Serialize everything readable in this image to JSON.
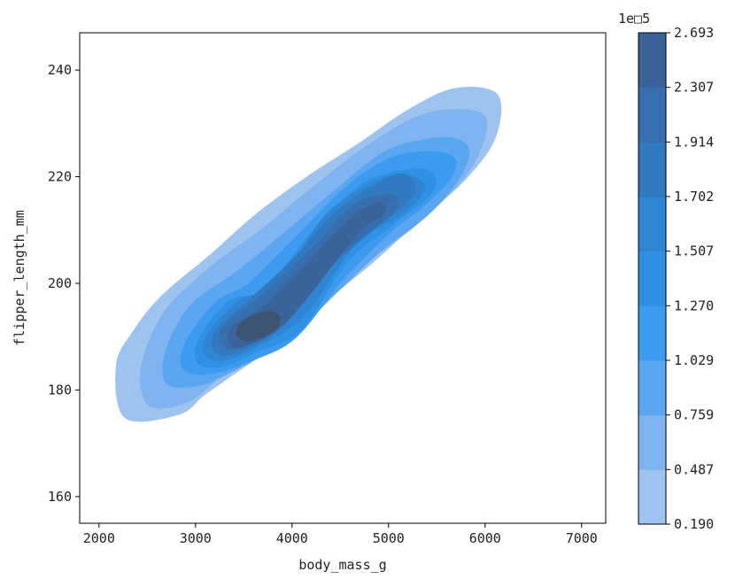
{
  "chart_data": {
    "type": "density-contour",
    "xlabel": "body_mass_g",
    "ylabel": "flipper_length_mm",
    "xlim": [
      1800,
      7250
    ],
    "ylim": [
      155,
      247
    ],
    "x_ticks": [
      2000,
      3000,
      4000,
      5000,
      6000,
      7000
    ],
    "y_ticks": [
      160,
      180,
      200,
      220,
      240
    ],
    "x_tick_labels": [
      "2000",
      "3000",
      "4000",
      "5000",
      "6000",
      "7000"
    ],
    "y_tick_labels": [
      "160",
      "180",
      "200",
      "220",
      "240"
    ],
    "grid": false,
    "colorbar": {
      "multiplier": "1e□5",
      "levels": [
        0.19,
        0.487,
        0.759,
        1.029,
        1.27,
        1.507,
        1.702,
        1.914,
        2.307,
        2.693
      ],
      "tick_labels": [
        "0.190",
        "0.487",
        "0.759",
        "1.029",
        "1.270",
        "1.507",
        "1.702",
        "1.914",
        "2.307",
        "2.693"
      ],
      "colors": [
        "#9fc3ef",
        "#7fb4f0",
        "#5aa6f1",
        "#3d9bef",
        "#2e91e4",
        "#2f85d2",
        "#327ac0",
        "#376fae",
        "#3a6399",
        "#3d5472"
      ]
    },
    "density_levels": [
      {
        "level": 0.19,
        "ridge": [
          [
            2500,
            180
          ],
          [
            2720,
            185
          ],
          [
            3000,
            190
          ],
          [
            3500,
            197
          ],
          [
            4000,
            205
          ],
          [
            4500,
            212
          ],
          [
            5000,
            219
          ],
          [
            5500,
            226
          ],
          [
            5900,
            232
          ]
        ],
        "half_width": [
          7.5,
          9,
          10,
          10.5,
          10.5,
          10.2,
          9.2,
          8.5,
          6
        ]
      },
      {
        "level": 0.487,
        "ridge": [
          [
            2680,
            181
          ],
          [
            3000,
            189
          ],
          [
            3500,
            196
          ],
          [
            4000,
            203
          ],
          [
            4500,
            211
          ],
          [
            5000,
            218
          ],
          [
            5500,
            225
          ],
          [
            5820,
            229
          ]
        ],
        "half_width": [
          5.5,
          8.2,
          9.5,
          9.2,
          8.8,
          8.8,
          7.5,
          4.5
        ]
      },
      {
        "level": 0.759,
        "ridge": [
          [
            2860,
            184
          ],
          [
            3200,
            190
          ],
          [
            3700,
            196
          ],
          [
            4200,
            204
          ],
          [
            4700,
            212
          ],
          [
            5200,
            219
          ],
          [
            5650,
            224
          ]
        ],
        "half_width": [
          4.5,
          7.5,
          8,
          7.5,
          7.2,
          7.2,
          4
        ]
      },
      {
        "level": 1.029,
        "ridge": [
          [
            3020,
            186
          ],
          [
            3400,
            191
          ],
          [
            3800,
            195
          ],
          [
            4300,
            205
          ],
          [
            4800,
            214
          ],
          [
            5200,
            219
          ],
          [
            5560,
            222
          ]
        ],
        "half_width": [
          3.8,
          6.5,
          6.8,
          6,
          6,
          5.5,
          3
        ]
      },
      {
        "level": 1.27,
        "ridge": [
          [
            3150,
            187
          ],
          [
            3500,
            192
          ],
          [
            3900,
            195
          ],
          [
            4400,
            207
          ],
          [
            4900,
            215
          ],
          [
            5360,
            219
          ]
        ],
        "half_width": [
          3.4,
          5.5,
          5.2,
          4.4,
          4.8,
          2.8
        ]
      },
      {
        "level": 1.507,
        "ridge": [
          [
            3220,
            188
          ],
          [
            3600,
            193
          ],
          [
            4000,
            197
          ],
          [
            4500,
            210
          ],
          [
            5000,
            216
          ],
          [
            5260,
            218
          ]
        ],
        "half_width": [
          3,
          4.7,
          3.8,
          4,
          4,
          2.4
        ]
      },
      {
        "level": 1.702,
        "ridge": [
          [
            3300,
            189
          ],
          [
            3700,
            194
          ],
          [
            4100,
            202
          ],
          [
            4600,
            211
          ],
          [
            5140,
            218
          ]
        ],
        "half_width": [
          2.8,
          4,
          3,
          3.6,
          2.8
        ]
      },
      {
        "level": 1.914,
        "ridge": [
          [
            3370,
            190
          ],
          [
            3800,
            195
          ],
          [
            4300,
            205
          ],
          [
            4700,
            212
          ],
          [
            5000,
            215
          ]
        ],
        "half_width": [
          2.6,
          3.5,
          2.4,
          3,
          2
        ]
      },
      {
        "level": 2.307,
        "ridge": [
          [
            3440,
            190
          ],
          [
            3870,
            195
          ],
          [
            4600,
            210
          ],
          [
            4900,
            214
          ]
        ],
        "half_width": [
          2.2,
          2.5,
          1.6,
          1.4
        ]
      },
      {
        "level": 2.693,
        "ridge": [
          [
            3520,
            191
          ],
          [
            3780,
            193
          ]
        ],
        "half_width": [
          2,
          2
        ]
      }
    ]
  }
}
